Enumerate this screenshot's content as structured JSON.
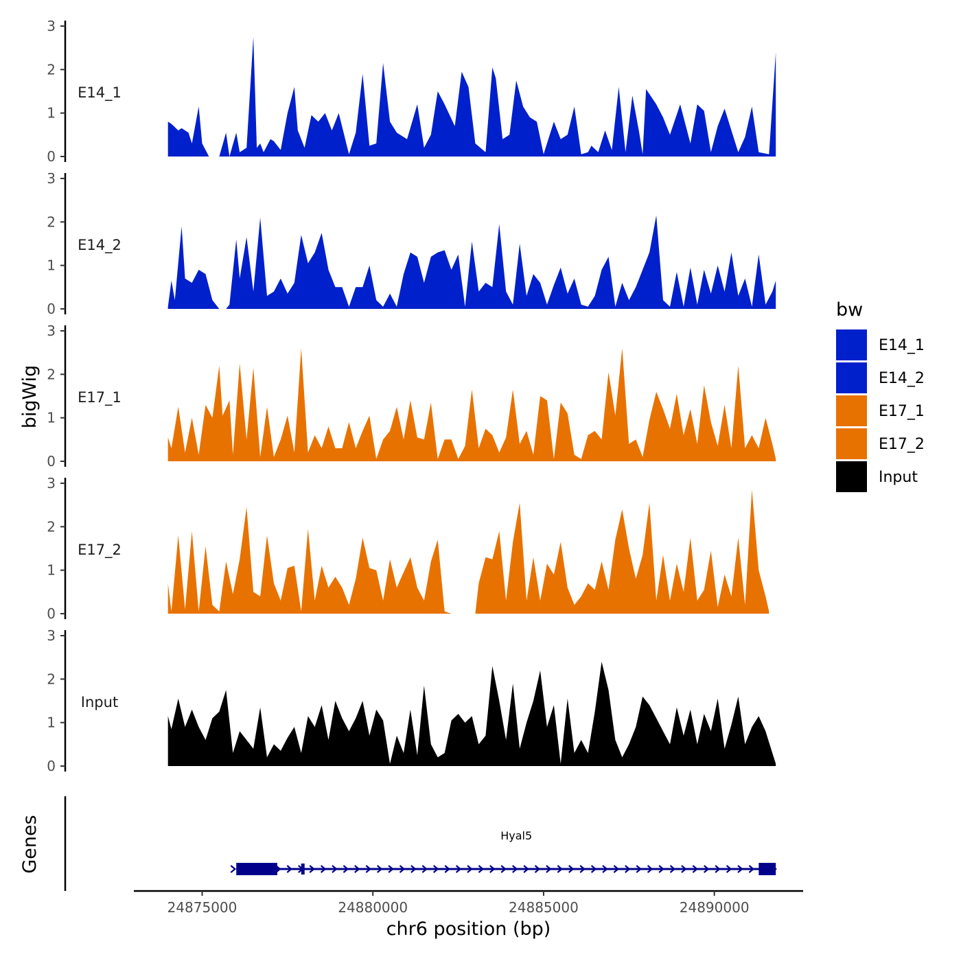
{
  "chart_data": {
    "type": "area",
    "ylabel": "bigWig",
    "xlabel": "chr6 position (bp)",
    "xlim": [
      24873000,
      24892600
    ],
    "x_ticks": [
      24875000,
      24880000,
      24885000,
      24890000
    ],
    "x_tick_labels": [
      "24875000",
      "24880000",
      "24885000",
      "24890000"
    ],
    "ylim": [
      0,
      3
    ],
    "y_ticks": [
      0,
      1,
      2,
      3
    ],
    "y_tick_labels": [
      "0",
      "1",
      "2",
      "3"
    ],
    "legend": {
      "title": "bw",
      "position": "right",
      "items": [
        {
          "label": "E14_1",
          "color": "#0020CC"
        },
        {
          "label": "E14_2",
          "color": "#0020CC"
        },
        {
          "label": "E17_1",
          "color": "#E87200"
        },
        {
          "label": "E17_2",
          "color": "#E87200"
        },
        {
          "label": "Input",
          "color": "#000000"
        }
      ]
    },
    "series": [
      {
        "name": "E14_1",
        "color": "#0020CC",
        "x": [
          24874000,
          24874100,
          24874300,
          24874400,
          24874600,
          24874700,
          24874900,
          24875000,
          24875200,
          24875500,
          24875700,
          24875800,
          24876000,
          24876100,
          24876300,
          24876500,
          24876600,
          24876700,
          24876800,
          24877000,
          24877100,
          24877300,
          24877500,
          24877700,
          24877800,
          24878000,
          24878200,
          24878400,
          24878600,
          24878800,
          24879000,
          24879300,
          24879500,
          24879700,
          24879900,
          24880100,
          24880300,
          24880500,
          24880700,
          24881000,
          24881300,
          24881500,
          24881700,
          24881900,
          24882100,
          24882400,
          24882600,
          24882800,
          24883000,
          24883300,
          24883500,
          24883600,
          24883800,
          24884000,
          24884200,
          24884400,
          24884600,
          24884800,
          24885000,
          24885300,
          24885500,
          24885700,
          24885900,
          24886100,
          24886300,
          24886400,
          24886600,
          24886800,
          24887000,
          24887200,
          24887400,
          24887600,
          24887800,
          24887900,
          24888000,
          24888300,
          24888500,
          24888700,
          24889000,
          24889300,
          24889500,
          24889700,
          24889900,
          24890100,
          24890300,
          24890500,
          24890700,
          24890900,
          24891100,
          24891300,
          24891600,
          24891800
        ],
        "values": [
          0.8,
          0.75,
          0.6,
          0.65,
          0.55,
          0.3,
          1.15,
          0.3,
          0,
          0,
          0.55,
          0,
          0.55,
          0.1,
          0.2,
          2.75,
          0.2,
          0.3,
          0.1,
          0.4,
          0.35,
          0.15,
          1.0,
          1.6,
          0.6,
          0.2,
          0.95,
          0.8,
          1.0,
          0.6,
          1.0,
          0.05,
          0.55,
          1.9,
          0.25,
          0.3,
          2.15,
          0.8,
          0.55,
          0.4,
          1.2,
          0.2,
          0.5,
          1.5,
          1.2,
          0.7,
          1.95,
          1.6,
          0.3,
          0.1,
          2.05,
          1.8,
          0.4,
          0.5,
          1.75,
          1.15,
          0.9,
          0.8,
          0.05,
          0.8,
          0.4,
          0.5,
          1.15,
          0.05,
          0.1,
          0.25,
          0.1,
          0.6,
          0.15,
          1.6,
          0.1,
          1.4,
          0.55,
          0.05,
          1.55,
          1.2,
          0.9,
          0.5,
          1.2,
          0.3,
          1.2,
          1.05,
          0.1,
          0.7,
          1.1,
          0.6,
          0.1,
          0.45,
          1.15,
          0.1,
          0.05,
          2.4
        ]
      },
      {
        "name": "E14_2",
        "color": "#0020CC",
        "x": [
          24874000,
          24874100,
          24874200,
          24874400,
          24874500,
          24874700,
          24874900,
          24875100,
          24875300,
          24875500,
          24875700,
          24875800,
          24876000,
          24876100,
          24876300,
          24876500,
          24876700,
          24876900,
          24877100,
          24877300,
          24877500,
          24877700,
          24877900,
          24878100,
          24878300,
          24878500,
          24878700,
          24878900,
          24879100,
          24879300,
          24879500,
          24879700,
          24879900,
          24880100,
          24880300,
          24880500,
          24880700,
          24880900,
          24881100,
          24881300,
          24881500,
          24881700,
          24881900,
          24882100,
          24882300,
          24882500,
          24882700,
          24882900,
          24883100,
          24883300,
          24883500,
          24883700,
          24883900,
          24884100,
          24884300,
          24884500,
          24884700,
          24884900,
          24885100,
          24885300,
          24885500,
          24885700,
          24885900,
          24886100,
          24886300,
          24886500,
          24886700,
          24886900,
          24887100,
          24887300,
          24887500,
          24887700,
          24887900,
          24888100,
          24888300,
          24888500,
          24888700,
          24888900,
          24889100,
          24889300,
          24889500,
          24889700,
          24889900,
          24890100,
          24890300,
          24890500,
          24890700,
          24890900,
          24891100,
          24891300,
          24891500,
          24891700,
          24891800
        ],
        "values": [
          0.05,
          0.65,
          0.2,
          1.9,
          0.7,
          0.6,
          0.9,
          0.8,
          0.2,
          0,
          0,
          0.1,
          1.6,
          0.7,
          1.65,
          0.4,
          2.1,
          0.3,
          0.4,
          0.7,
          0.35,
          0.6,
          1.7,
          1.05,
          1.3,
          1.75,
          0.9,
          0.5,
          0.5,
          0.05,
          0.5,
          0.5,
          1.0,
          0.2,
          0.05,
          0.35,
          0.05,
          0.8,
          1.3,
          1.2,
          0.6,
          1.2,
          1.3,
          1.35,
          0.9,
          1.25,
          0.05,
          1.55,
          0.4,
          0.6,
          0.5,
          1.95,
          0.4,
          0.1,
          1.5,
          0.3,
          0.8,
          0.6,
          0.1,
          0.55,
          0.95,
          0.35,
          0.7,
          0.1,
          0.05,
          0.3,
          0.9,
          1.2,
          0.05,
          0.6,
          0.2,
          0.5,
          0.9,
          1.3,
          2.15,
          0.2,
          0.05,
          0.85,
          0.05,
          0.95,
          0.1,
          0.9,
          0.35,
          1.0,
          0.4,
          1.3,
          0.3,
          0.7,
          0.05,
          1.25,
          0.1,
          0.4,
          0.65
        ]
      },
      {
        "name": "E17_1",
        "color": "#E87200",
        "x": [
          24874000,
          24874100,
          24874300,
          24874500,
          24874700,
          24874900,
          24875100,
          24875300,
          24875500,
          24875600,
          24875800,
          24875900,
          24876100,
          24876300,
          24876500,
          24876700,
          24876900,
          24877100,
          24877300,
          24877500,
          24877700,
          24877900,
          24878100,
          24878300,
          24878500,
          24878700,
          24878900,
          24879100,
          24879300,
          24879500,
          24879700,
          24879900,
          24880100,
          24880300,
          24880500,
          24880700,
          24880900,
          24881100,
          24881300,
          24881500,
          24881700,
          24881900,
          24882100,
          24882300,
          24882500,
          24882700,
          24882900,
          24883100,
          24883300,
          24883500,
          24883700,
          24883900,
          24884100,
          24884300,
          24884500,
          24884700,
          24884900,
          24885100,
          24885300,
          24885500,
          24885700,
          24885900,
          24886100,
          24886300,
          24886500,
          24886700,
          24886900,
          24887100,
          24887300,
          24887500,
          24887700,
          24887900,
          24888100,
          24888300,
          24888500,
          24888700,
          24888900,
          24889100,
          24889300,
          24889500,
          24889700,
          24889900,
          24890100,
          24890300,
          24890500,
          24890700,
          24890900,
          24891100,
          24891300,
          24891500,
          24891700,
          24891800
        ],
        "values": [
          0.55,
          0.3,
          1.25,
          0.2,
          1.0,
          0.15,
          1.3,
          1.0,
          2.2,
          1.05,
          1.4,
          0.15,
          2.25,
          0.5,
          2.15,
          0.1,
          1.25,
          0.1,
          0.5,
          1.05,
          0.2,
          2.6,
          0.2,
          0.6,
          0.3,
          0.8,
          0.3,
          0.3,
          0.9,
          0.3,
          0.7,
          1.05,
          0.05,
          0.5,
          0.7,
          1.25,
          0.5,
          1.4,
          0.55,
          0.5,
          1.35,
          0.05,
          0.5,
          0.5,
          0.05,
          0.35,
          1.65,
          0.3,
          0.75,
          0.6,
          0.2,
          0.55,
          1.65,
          0.4,
          0.7,
          0.15,
          1.5,
          1.4,
          0.05,
          1.35,
          1.1,
          0.15,
          0.05,
          0.6,
          0.7,
          0.5,
          2.05,
          1.05,
          2.6,
          0.4,
          0.5,
          0.1,
          0.95,
          1.6,
          1.2,
          0.75,
          1.55,
          0.6,
          1.2,
          0.4,
          1.75,
          0.9,
          0.35,
          1.3,
          0.3,
          2.2,
          0.3,
          0.6,
          0.3,
          1.0,
          0.4,
          0.05
        ]
      },
      {
        "name": "E17_2",
        "color": "#E87200",
        "x": [
          24874000,
          24874100,
          24874300,
          24874500,
          24874700,
          24874900,
          24875100,
          24875300,
          24875500,
          24875700,
          24875900,
          24876100,
          24876300,
          24876500,
          24876700,
          24876900,
          24877100,
          24877300,
          24877500,
          24877700,
          24877900,
          24878100,
          24878300,
          24878500,
          24878700,
          24878900,
          24879100,
          24879300,
          24879500,
          24879700,
          24879900,
          24880100,
          24880300,
          24880500,
          24880700,
          24880900,
          24881100,
          24881300,
          24881500,
          24881700,
          24881900,
          24882100,
          24882300,
          24882500,
          24882700,
          24882900,
          24883000,
          24883100,
          24883300,
          24883500,
          24883700,
          24883900,
          24884100,
          24884300,
          24884500,
          24884700,
          24884900,
          24885100,
          24885300,
          24885500,
          24885700,
          24885900,
          24886100,
          24886300,
          24886500,
          24886700,
          24886900,
          24887100,
          24887300,
          24887500,
          24887700,
          24887900,
          24888100,
          24888300,
          24888500,
          24888700,
          24888900,
          24889100,
          24889300,
          24889500,
          24889700,
          24889900,
          24890100,
          24890300,
          24890500,
          24890700,
          24890900,
          24891100,
          24891300,
          24891500,
          24891600
        ],
        "values": [
          0.7,
          0.05,
          1.8,
          0.1,
          1.9,
          0.05,
          1.55,
          0.2,
          0.05,
          1.2,
          0.45,
          1.25,
          2.45,
          0.5,
          0.4,
          1.8,
          0.7,
          0.3,
          1.05,
          1.1,
          0.05,
          1.95,
          0.3,
          1.1,
          0.6,
          0.85,
          0.6,
          0.2,
          0.8,
          1.75,
          1.05,
          1.0,
          0.3,
          1.25,
          0.6,
          0.95,
          1.3,
          0.6,
          0.3,
          1.2,
          1.7,
          0.05,
          0,
          0,
          0,
          0,
          0,
          0.7,
          1.3,
          1.25,
          1.9,
          0.3,
          1.65,
          2.55,
          0.3,
          1.3,
          0.3,
          1.15,
          0.9,
          1.65,
          0.6,
          0.2,
          0.4,
          0.7,
          0.55,
          1.2,
          0.55,
          1.7,
          2.4,
          1.5,
          0.8,
          1.35,
          2.55,
          0.3,
          1.35,
          0.3,
          1.15,
          0.5,
          1.75,
          0.3,
          0.55,
          1.45,
          0.15,
          0.9,
          0.4,
          1.75,
          0.2,
          2.85,
          1.0,
          0.4,
          0.05
        ]
      },
      {
        "name": "Input",
        "color": "#000000",
        "x": [
          24874000,
          24874100,
          24874300,
          24874500,
          24874700,
          24874900,
          24875100,
          24875300,
          24875500,
          24875700,
          24875900,
          24876100,
          24876300,
          24876500,
          24876700,
          24876900,
          24877100,
          24877300,
          24877500,
          24877700,
          24877900,
          24878100,
          24878300,
          24878500,
          24878700,
          24878900,
          24879100,
          24879300,
          24879500,
          24879700,
          24879900,
          24880100,
          24880300,
          24880500,
          24880700,
          24880900,
          24881100,
          24881300,
          24881500,
          24881700,
          24881900,
          24882100,
          24882300,
          24882500,
          24882700,
          24882900,
          24883100,
          24883300,
          24883500,
          24883700,
          24883900,
          24884100,
          24884300,
          24884500,
          24884700,
          24884900,
          24885100,
          24885300,
          24885500,
          24885700,
          24885900,
          24886100,
          24886300,
          24886500,
          24886700,
          24886900,
          24887100,
          24887300,
          24887500,
          24887700,
          24887900,
          24888100,
          24888300,
          24888500,
          24888700,
          24888900,
          24889100,
          24889300,
          24889500,
          24889700,
          24889900,
          24890100,
          24890300,
          24890500,
          24890700,
          24890900,
          24891100,
          24891300,
          24891500,
          24891700,
          24891800
        ],
        "values": [
          1.15,
          0.85,
          1.55,
          0.9,
          1.3,
          0.9,
          0.6,
          1.1,
          1.25,
          1.75,
          0.3,
          0.8,
          0.6,
          0.4,
          1.35,
          0.2,
          0.5,
          0.35,
          0.65,
          0.9,
          0.3,
          1.15,
          0.9,
          1.4,
          0.6,
          1.5,
          1.1,
          0.8,
          1.1,
          1.5,
          0.7,
          1.3,
          1.05,
          0.05,
          0.7,
          0.3,
          1.3,
          0.25,
          1.85,
          0.5,
          0.2,
          0.3,
          1.05,
          1.2,
          1.0,
          1.15,
          0.5,
          0.7,
          2.3,
          1.5,
          0.6,
          1.9,
          0.4,
          1.0,
          1.5,
          2.2,
          0.9,
          1.4,
          0.05,
          1.55,
          0.3,
          0.6,
          0.3,
          1.25,
          2.4,
          1.75,
          0.6,
          0.2,
          0.5,
          0.9,
          1.6,
          1.4,
          1.1,
          0.8,
          0.5,
          1.35,
          0.7,
          1.3,
          0.5,
          1.2,
          0.8,
          1.55,
          0.4,
          0.95,
          1.6,
          0.5,
          0.9,
          1.15,
          0.8,
          0.3,
          0.05
        ]
      }
    ],
    "genes": [
      {
        "name": "Hyal5",
        "start": 24876000,
        "end": 24891800,
        "strand": "+",
        "exons": [
          [
            24876000,
            24877200
          ],
          [
            24877900,
            24878000
          ],
          [
            24891300,
            24891800
          ]
        ],
        "color": "#00008B"
      }
    ],
    "gene_track_label": "Genes"
  }
}
